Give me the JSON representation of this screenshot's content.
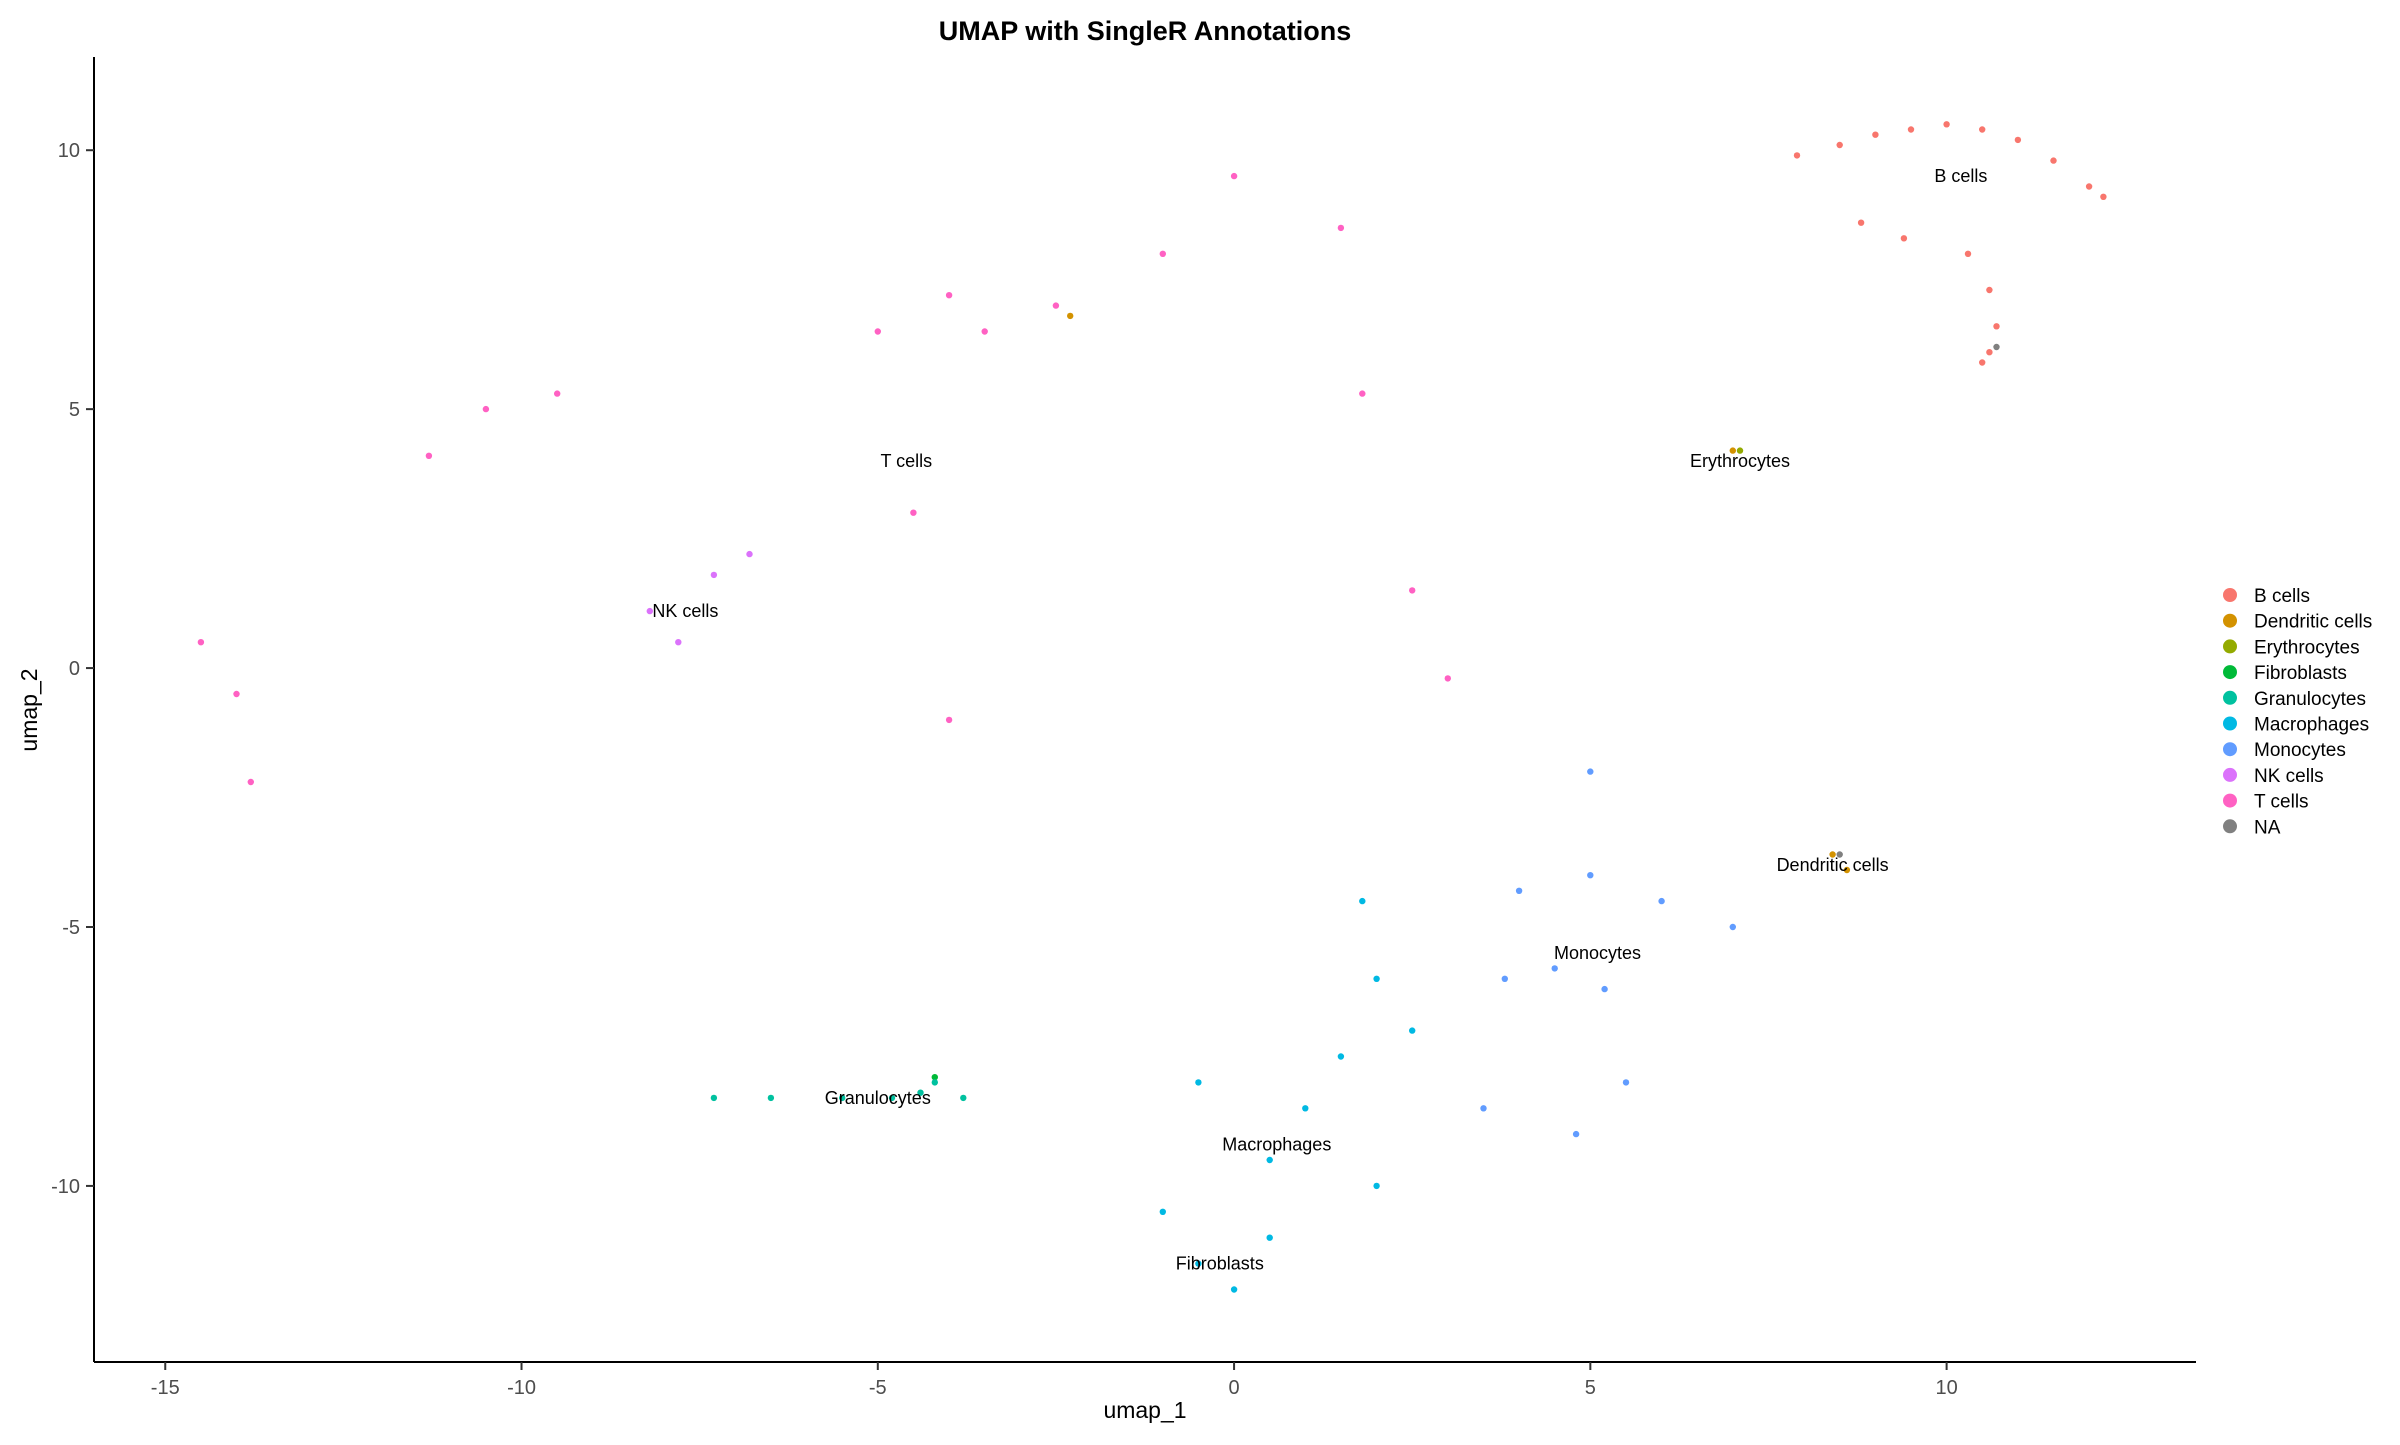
{
  "chart_data": {
    "type": "scatter",
    "title": "UMAP with SingleR Annotations",
    "xlabel": "umap_1",
    "ylabel": "umap_2",
    "xlim": [
      -16.0,
      13.5
    ],
    "ylim": [
      -13.4,
      11.8
    ],
    "xticks": [
      -15,
      -10,
      -5,
      0,
      5,
      10
    ],
    "yticks": [
      -10,
      -5,
      0,
      5,
      10
    ],
    "grid": false,
    "legend": {
      "position": "right",
      "entries": [
        {
          "name": "B cells",
          "color": "#F8766D"
        },
        {
          "name": "Dendritic cells",
          "color": "#D39200"
        },
        {
          "name": "Erythrocytes",
          "color": "#93AA00"
        },
        {
          "name": "Fibroblasts",
          "color": "#00BA38"
        },
        {
          "name": "Granulocytes",
          "color": "#00C19F"
        },
        {
          "name": "Macrophages",
          "color": "#00B9E3"
        },
        {
          "name": "Monocytes",
          "color": "#619CFF"
        },
        {
          "name": "NK cells",
          "color": "#DB72FB"
        },
        {
          "name": "T cells",
          "color": "#FF61C3"
        },
        {
          "name": "NA",
          "color": "#808080"
        }
      ]
    },
    "cluster_labels": [
      {
        "text": "B cells",
        "x": 10.2,
        "y": 9.5
      },
      {
        "text": "T cells",
        "x": -4.6,
        "y": 4.0
      },
      {
        "text": "Erythrocytes",
        "x": 7.1,
        "y": 4.0
      },
      {
        "text": "NK cells",
        "x": -7.7,
        "y": 1.1
      },
      {
        "text": "Dendritic cells",
        "x": 8.4,
        "y": -3.8
      },
      {
        "text": "Monocytes",
        "x": 5.1,
        "y": -5.5
      },
      {
        "text": "Granulocytes",
        "x": -5.0,
        "y": -8.3
      },
      {
        "text": "Macrophages",
        "x": 0.6,
        "y": -9.2
      },
      {
        "text": "Fibroblasts",
        "x": -0.2,
        "y": -11.5
      }
    ],
    "series": [
      {
        "name": "B cells",
        "color": "#F8766D",
        "x": [
          7.9,
          8.5,
          9.0,
          9.5,
          10.0,
          10.5,
          11.0,
          11.5,
          12.0,
          12.2,
          8.8,
          9.4,
          10.3,
          10.6,
          10.7,
          10.6,
          10.5
        ],
        "y": [
          9.9,
          10.1,
          10.3,
          10.4,
          10.5,
          10.4,
          10.2,
          9.8,
          9.3,
          9.1,
          8.6,
          8.3,
          8.0,
          7.3,
          6.6,
          6.1,
          5.9
        ]
      },
      {
        "name": "Dendritic cells",
        "color": "#D39200",
        "x": [
          8.4,
          8.6,
          -2.3,
          7.0
        ],
        "y": [
          -3.6,
          -3.9,
          6.8,
          4.2
        ]
      },
      {
        "name": "Erythrocytes",
        "color": "#93AA00",
        "x": [
          7.1
        ],
        "y": [
          4.2
        ]
      },
      {
        "name": "Fibroblasts",
        "color": "#00BA38",
        "x": [
          -4.2
        ],
        "y": [
          -7.9
        ]
      },
      {
        "name": "Granulocytes",
        "color": "#00C19F",
        "x": [
          -7.3,
          -6.5,
          -5.5,
          -4.8,
          -4.4,
          -4.2,
          -3.8
        ],
        "y": [
          -8.3,
          -8.3,
          -8.3,
          -8.3,
          -8.2,
          -8.0,
          -8.3
        ]
      },
      {
        "name": "Macrophages",
        "color": "#00B9E3",
        "x": [
          -1.0,
          -0.5,
          0.0,
          0.5,
          1.0,
          1.5,
          2.0,
          2.5,
          1.8,
          2.0,
          0.5,
          -0.5
        ],
        "y": [
          -10.5,
          -11.5,
          -12.0,
          -11.0,
          -8.5,
          -7.5,
          -6.0,
          -7.0,
          -4.5,
          -10.0,
          -9.5,
          -8.0
        ]
      },
      {
        "name": "Monocytes",
        "color": "#619CFF",
        "x": [
          4.0,
          5.0,
          6.0,
          7.0,
          3.8,
          4.5,
          5.2,
          3.5,
          4.8,
          5.5,
          5.0
        ],
        "y": [
          -4.3,
          -4.0,
          -4.5,
          -5.0,
          -6.0,
          -5.8,
          -6.2,
          -8.5,
          -9.0,
          -8.0,
          -2.0
        ]
      },
      {
        "name": "NK cells",
        "color": "#DB72FB",
        "x": [
          -8.2,
          -7.8,
          -7.3,
          -6.8
        ],
        "y": [
          1.1,
          0.5,
          1.8,
          2.2
        ]
      },
      {
        "name": "T cells",
        "color": "#FF61C3",
        "x": [
          -14.5,
          -14.0,
          -13.8,
          -11.3,
          -10.5,
          -9.5,
          -5.0,
          -4.0,
          -3.5,
          -2.5,
          -1.0,
          0.0,
          1.5,
          -4.5,
          -4.0,
          1.8,
          2.5,
          3.0
        ],
        "y": [
          0.5,
          -0.5,
          -2.2,
          4.1,
          5.0,
          5.3,
          6.5,
          7.2,
          6.5,
          7.0,
          8.0,
          9.5,
          8.5,
          3.0,
          -1.0,
          5.3,
          1.5,
          -0.2
        ]
      },
      {
        "name": "NA",
        "color": "#808080",
        "x": [
          10.7,
          8.5
        ],
        "y": [
          6.2,
          -3.6
        ]
      }
    ]
  }
}
